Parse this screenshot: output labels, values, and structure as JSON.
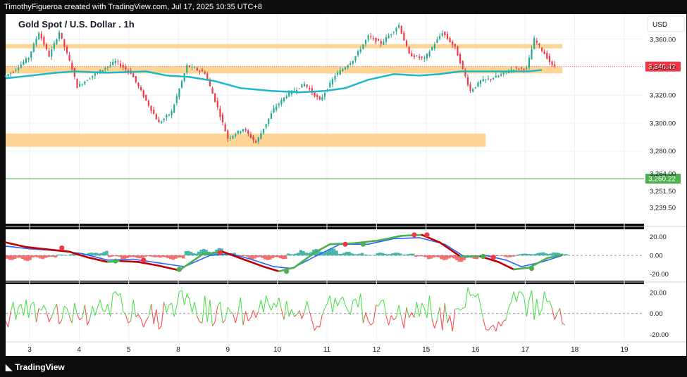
{
  "header": {
    "caption": "TimothyFigueroa created with TradingView.com, Jul 17, 2025 10:35 UTC+8"
  },
  "footer": {
    "brand": "TradingView",
    "logo_icon": "tradingview-logo-icon"
  },
  "colors": {
    "bg": "#ffffff",
    "outer": "#0d0d0d",
    "grid": "#eef0f3",
    "up": "#22ab94",
    "down": "#f23645",
    "ma": "#1fb8c9",
    "zone": "#ffd08a",
    "support_line": "#4caf50",
    "wt_fast": "#c00000",
    "wt_fast_up": "#4caf50",
    "wt_slow": "#2962ff",
    "osc_up": "#40e040",
    "osc_down": "#ff4040"
  },
  "chart_data": [
    {
      "type": "candlestick",
      "title": "Gold Spot / U.S. Dollar . 1h",
      "currency": "USD",
      "ylim": [
        3228,
        3378
      ],
      "y_ticks": [
        "3,360.00",
        "3,340.00",
        "3,320.00",
        "3,300.00",
        "3,280.00",
        "3,264.00",
        "3,251.50",
        "3,239.50"
      ],
      "y_tick_values": [
        3360,
        3340,
        3320,
        3300,
        3280,
        3264,
        3251.5,
        3239.5
      ],
      "x_ticks": [
        "3",
        "4",
        "5",
        "8",
        "9",
        "10",
        "11",
        "12",
        "15",
        "16",
        "17",
        "18",
        "19"
      ],
      "x_range_bars": [
        0,
        250
      ],
      "last_price": {
        "label": "3,340.42",
        "value": 3340.42
      },
      "support_price": {
        "label": "3,260.22",
        "value": 3260.22
      },
      "zones": [
        {
          "from": 3353.5,
          "to": 3356.5,
          "start_bar": 0,
          "end_bar": 218
        },
        {
          "from": 3335.5,
          "to": 3340.5,
          "start_bar": 0,
          "end_bar": 218
        },
        {
          "from": 3283.0,
          "to": 3292.5,
          "start_bar": 0,
          "end_bar": 188
        }
      ],
      "pivots": [
        [
          0,
          3333
        ],
        [
          4,
          3337
        ],
        [
          10,
          3347
        ],
        [
          14,
          3365
        ],
        [
          18,
          3348
        ],
        [
          22,
          3365
        ],
        [
          27,
          3339
        ],
        [
          29,
          3326
        ],
        [
          35,
          3334
        ],
        [
          44,
          3344
        ],
        [
          50,
          3336
        ],
        [
          56,
          3316
        ],
        [
          61,
          3300
        ],
        [
          66,
          3308
        ],
        [
          72,
          3341
        ],
        [
          79,
          3336
        ],
        [
          84,
          3311
        ],
        [
          88,
          3289
        ],
        [
          94,
          3296
        ],
        [
          99,
          3286
        ],
        [
          106,
          3310
        ],
        [
          111,
          3320
        ],
        [
          118,
          3328
        ],
        [
          124,
          3316
        ],
        [
          130,
          3334
        ],
        [
          137,
          3345
        ],
        [
          143,
          3362
        ],
        [
          148,
          3357
        ],
        [
          155,
          3370
        ],
        [
          159,
          3349
        ],
        [
          165,
          3346
        ],
        [
          172,
          3365
        ],
        [
          177,
          3354
        ],
        [
          183,
          3323
        ],
        [
          187,
          3330
        ],
        [
          193,
          3333
        ],
        [
          200,
          3339
        ],
        [
          205,
          3339
        ],
        [
          208,
          3360
        ],
        [
          213,
          3347
        ],
        [
          215,
          3341
        ]
      ],
      "ma_points": [
        [
          0,
          3332
        ],
        [
          10,
          3334
        ],
        [
          20,
          3336
        ],
        [
          27,
          3337
        ],
        [
          40,
          3336
        ],
        [
          55,
          3337
        ],
        [
          63,
          3334
        ],
        [
          72,
          3333
        ],
        [
          82,
          3330
        ],
        [
          92,
          3325
        ],
        [
          104,
          3323
        ],
        [
          115,
          3322
        ],
        [
          125,
          3323
        ],
        [
          133,
          3325
        ],
        [
          142,
          3331
        ],
        [
          152,
          3335
        ],
        [
          162,
          3334
        ],
        [
          170,
          3335
        ],
        [
          178,
          3337
        ],
        [
          186,
          3337
        ],
        [
          196,
          3337
        ],
        [
          205,
          3337
        ],
        [
          210,
          3338
        ]
      ]
    },
    {
      "type": "line",
      "name": "wave-trend",
      "ylim": [
        -27,
        28
      ],
      "y_ticks": [
        "20.00",
        "0.00",
        "-20.00"
      ],
      "y_tick_values": [
        20,
        0,
        -20
      ],
      "fast": [
        [
          0,
          14
        ],
        [
          8,
          9
        ],
        [
          18,
          6
        ],
        [
          25,
          4
        ],
        [
          32,
          -2
        ],
        [
          40,
          -7
        ],
        [
          45,
          -6
        ],
        [
          52,
          -7
        ],
        [
          60,
          -11
        ],
        [
          68,
          -16
        ],
        [
          77,
          1
        ],
        [
          85,
          4
        ],
        [
          93,
          -4
        ],
        [
          101,
          -12
        ],
        [
          107,
          -17
        ],
        [
          113,
          -13
        ],
        [
          121,
          3
        ],
        [
          127,
          12
        ],
        [
          136,
          13
        ],
        [
          146,
          16
        ],
        [
          155,
          21
        ],
        [
          163,
          22
        ],
        [
          170,
          14
        ],
        [
          178,
          -1
        ],
        [
          186,
          -1
        ],
        [
          193,
          -7
        ],
        [
          199,
          -15
        ],
        [
          205,
          -13
        ],
        [
          212,
          -3
        ],
        [
          218,
          1
        ]
      ],
      "slow": [
        [
          0,
          10
        ],
        [
          10,
          7
        ],
        [
          20,
          5
        ],
        [
          30,
          2
        ],
        [
          40,
          -5
        ],
        [
          50,
          -4
        ],
        [
          60,
          -8
        ],
        [
          70,
          -12
        ],
        [
          80,
          0
        ],
        [
          88,
          2
        ],
        [
          96,
          -4
        ],
        [
          105,
          -12
        ],
        [
          112,
          -14
        ],
        [
          122,
          0
        ],
        [
          131,
          12
        ],
        [
          142,
          12
        ],
        [
          152,
          18
        ],
        [
          162,
          19
        ],
        [
          172,
          12
        ],
        [
          180,
          -2
        ],
        [
          188,
          0
        ],
        [
          196,
          -5
        ],
        [
          202,
          -12
        ],
        [
          210,
          -7
        ],
        [
          218,
          0
        ]
      ],
      "histogram": [
        [
          0,
          -5
        ],
        [
          5,
          -6
        ],
        [
          10,
          -4
        ],
        [
          15,
          -3
        ],
        [
          20,
          1
        ],
        [
          25,
          2
        ],
        [
          30,
          3
        ],
        [
          35,
          5
        ],
        [
          40,
          -2
        ],
        [
          45,
          -4
        ],
        [
          50,
          -3
        ],
        [
          55,
          -2
        ],
        [
          60,
          -4
        ],
        [
          65,
          -5
        ],
        [
          70,
          5
        ],
        [
          75,
          7
        ],
        [
          80,
          8
        ],
        [
          85,
          3
        ],
        [
          90,
          -2
        ],
        [
          95,
          -4
        ],
        [
          100,
          -5
        ],
        [
          105,
          -4
        ],
        [
          110,
          3
        ],
        [
          115,
          6
        ],
        [
          120,
          7
        ],
        [
          125,
          8
        ],
        [
          130,
          4
        ],
        [
          135,
          3
        ],
        [
          140,
          1
        ],
        [
          145,
          3
        ],
        [
          150,
          3
        ],
        [
          155,
          2
        ],
        [
          160,
          -2
        ],
        [
          165,
          -4
        ],
        [
          170,
          -5
        ],
        [
          175,
          -7
        ],
        [
          180,
          -4
        ],
        [
          185,
          -2
        ],
        [
          190,
          -1
        ],
        [
          195,
          -2
        ],
        [
          200,
          2
        ],
        [
          205,
          3
        ],
        [
          210,
          4
        ],
        [
          215,
          3
        ]
      ],
      "cross_points": [
        [
          22,
          8,
          "red"
        ],
        [
          43,
          -6,
          "green"
        ],
        [
          54,
          -5,
          "red"
        ],
        [
          68,
          -15,
          "green"
        ],
        [
          84,
          3,
          "red"
        ],
        [
          110,
          -17,
          "green"
        ],
        [
          133,
          12,
          "red"
        ],
        [
          140,
          12,
          "green"
        ],
        [
          160,
          22,
          "red"
        ],
        [
          165,
          22,
          "red"
        ],
        [
          187,
          -1,
          "green"
        ],
        [
          191,
          -2,
          "red"
        ],
        [
          206,
          -14,
          "green"
        ]
      ]
    },
    {
      "type": "line",
      "name": "oscillator",
      "ylim": [
        -27,
        28
      ],
      "y_ticks": [
        "20.00",
        "0.00",
        "-20.00"
      ],
      "y_tick_values": [
        20,
        0,
        -20
      ],
      "values": [
        -7,
        -13,
        2,
        11,
        -6,
        6,
        9,
        -2,
        13,
        -4,
        9,
        11,
        -8,
        5,
        3,
        8,
        2,
        -8,
        -3,
        4,
        9,
        -10,
        -6,
        7,
        5,
        -3,
        -9,
        10,
        -1,
        -6,
        -4,
        8,
        -11,
        -5,
        7,
        -2,
        6,
        13,
        3,
        2,
        9,
        -3,
        19,
        21,
        17,
        19,
        2,
        -1,
        -9,
        -7,
        13,
        -3,
        -1,
        -5,
        -13,
        -7,
        -3,
        9,
        -10,
        4,
        -15,
        -12,
        11,
        1,
        8,
        10,
        -3,
        7,
        21,
        22,
        8,
        19,
        13,
        1,
        11,
        -3,
        -8,
        -9,
        17,
        -8,
        13,
        -12,
        -8,
        7,
        11,
        -9,
        -6,
        6,
        2,
        0,
        -9,
        1,
        15,
        -11,
        2,
        -7,
        -4,
        3,
        -4,
        2,
        13,
        1,
        17,
        9,
        3,
        10,
        6,
        15,
        4,
        -6,
        12,
        -3,
        4,
        -3,
        -1,
        3,
        -5,
        1,
        12,
        2,
        -7,
        -16,
        -12,
        -13,
        -1,
        5,
        10,
        17,
        1,
        15,
        7,
        13,
        16,
        8,
        3,
        -1,
        12,
        14,
        6,
        19,
        -9,
        1,
        -7,
        -11,
        -9,
        8,
        7,
        12,
        13,
        -2,
        -11,
        -2,
        -6,
        -4,
        8,
        -4,
        -14,
        6,
        -4,
        1,
        -4,
        11,
        -3,
        10,
        5,
        -4,
        17,
        -6,
        -14,
        -6,
        6,
        -16,
        10,
        -9,
        -2,
        -17,
        4,
        5,
        3,
        5,
        6,
        25,
        17,
        18,
        16,
        19,
        7,
        -5,
        -15,
        -16,
        -13,
        -11,
        -17,
        -8,
        -12,
        -7,
        -6,
        6,
        11,
        21,
        11,
        21,
        20,
        16,
        -3,
        13,
        22,
        -6,
        14,
        -2,
        4,
        21,
        11,
        12,
        5,
        -6,
        0,
        5,
        -9,
        -11
      ]
    }
  ]
}
